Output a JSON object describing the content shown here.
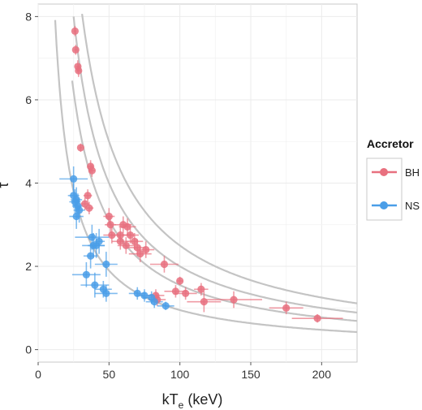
{
  "chart_data": {
    "type": "scatter",
    "xlabel": "kT",
    "xlabel_sub": "e",
    "xlabel_unit": "(keV)",
    "ylabel": "τ",
    "xlim": [
      0,
      225
    ],
    "ylim": [
      -0.3,
      8.3
    ],
    "x_ticks": [
      0,
      50,
      100,
      150,
      200
    ],
    "y_ticks": [
      0,
      2,
      4,
      6,
      8
    ],
    "grid": true,
    "legend": {
      "title": "Accretor",
      "position": "right",
      "entries": [
        {
          "label": "BH",
          "color": "#e8707f"
        },
        {
          "label": "NS",
          "color": "#4a9ee8"
        }
      ]
    },
    "curves": {
      "color": "#c4c4c4",
      "note_values_k": [
        200,
        250,
        155,
        95
      ],
      "x_start": [
        24,
        16,
        24,
        10
      ]
    },
    "series": [
      {
        "name": "BH",
        "color": "#e8707f",
        "points": [
          {
            "x": 26,
            "y": 7.65,
            "ex": 1,
            "ey": 0.12
          },
          {
            "x": 26.5,
            "y": 7.2,
            "ex": 1,
            "ey": 0.12
          },
          {
            "x": 28,
            "y": 6.8,
            "ex": 1.5,
            "ey": 0.15
          },
          {
            "x": 28.5,
            "y": 6.7,
            "ex": 1.5,
            "ey": 0.15
          },
          {
            "x": 30,
            "y": 4.85,
            "ex": 1,
            "ey": 0.1
          },
          {
            "x": 37,
            "y": 4.4,
            "ex": 2,
            "ey": 0.15
          },
          {
            "x": 38,
            "y": 4.3,
            "ex": 2,
            "ey": 0.15
          },
          {
            "x": 35,
            "y": 3.7,
            "ex": 3,
            "ey": 0.15
          },
          {
            "x": 33,
            "y": 3.5,
            "ex": 3,
            "ey": 0.15
          },
          {
            "x": 36,
            "y": 3.4,
            "ex": 3,
            "ey": 0.15
          },
          {
            "x": 50,
            "y": 3.2,
            "ex": 4,
            "ey": 0.2
          },
          {
            "x": 51,
            "y": 3.0,
            "ex": 4,
            "ey": 0.2
          },
          {
            "x": 52,
            "y": 2.75,
            "ex": 6,
            "ey": 0.2
          },
          {
            "x": 58,
            "y": 2.75,
            "ex": 8,
            "ey": 0.2
          },
          {
            "x": 60,
            "y": 3.0,
            "ex": 6,
            "ey": 0.2
          },
          {
            "x": 63,
            "y": 2.95,
            "ex": 6,
            "ey": 0.2
          },
          {
            "x": 65,
            "y": 2.75,
            "ex": 6,
            "ey": 0.2
          },
          {
            "x": 58,
            "y": 2.6,
            "ex": 6,
            "ey": 0.2
          },
          {
            "x": 62,
            "y": 2.5,
            "ex": 6,
            "ey": 0.2
          },
          {
            "x": 68,
            "y": 2.6,
            "ex": 6,
            "ey": 0.2
          },
          {
            "x": 70,
            "y": 2.45,
            "ex": 6,
            "ey": 0.2
          },
          {
            "x": 72,
            "y": 2.3,
            "ex": 8,
            "ey": 0.2
          },
          {
            "x": 76,
            "y": 2.4,
            "ex": 6,
            "ey": 0.2
          },
          {
            "x": 89,
            "y": 2.05,
            "ex": 10,
            "ey": 0.2
          },
          {
            "x": 100,
            "y": 1.65,
            "ex": 2,
            "ey": 0.1
          },
          {
            "x": 83,
            "y": 1.3,
            "ex": 6,
            "ey": 0.15
          },
          {
            "x": 84,
            "y": 1.2,
            "ex": 6,
            "ey": 0.15
          },
          {
            "x": 97,
            "y": 1.4,
            "ex": 8,
            "ey": 0.15
          },
          {
            "x": 104,
            "y": 1.35,
            "ex": 8,
            "ey": 0.15
          },
          {
            "x": 115,
            "y": 1.45,
            "ex": 5,
            "ey": 0.15
          },
          {
            "x": 117,
            "y": 1.15,
            "ex": 12,
            "ey": 0.25
          },
          {
            "x": 138,
            "y": 1.2,
            "ex": 20,
            "ey": 0.2
          },
          {
            "x": 175,
            "y": 1.0,
            "ex": 12,
            "ey": 0.15
          },
          {
            "x": 197,
            "y": 0.75,
            "ex": 18,
            "ey": 0.1
          }
        ]
      },
      {
        "name": "NS",
        "color": "#4a9ee8",
        "points": [
          {
            "x": 25,
            "y": 4.1,
            "ex": 10,
            "ey": 0.3
          },
          {
            "x": 25,
            "y": 3.7,
            "ex": 4,
            "ey": 0.3
          },
          {
            "x": 26,
            "y": 3.55,
            "ex": 4,
            "ey": 0.3
          },
          {
            "x": 27,
            "y": 3.6,
            "ex": 4,
            "ey": 0.3
          },
          {
            "x": 28,
            "y": 3.45,
            "ex": 4,
            "ey": 0.3
          },
          {
            "x": 29,
            "y": 3.35,
            "ex": 4,
            "ey": 0.3
          },
          {
            "x": 27,
            "y": 3.2,
            "ex": 5,
            "ey": 0.3
          },
          {
            "x": 38,
            "y": 2.7,
            "ex": 12,
            "ey": 0.3
          },
          {
            "x": 43,
            "y": 2.6,
            "ex": 4,
            "ey": 0.3
          },
          {
            "x": 39,
            "y": 2.5,
            "ex": 8,
            "ey": 0.3
          },
          {
            "x": 41,
            "y": 2.5,
            "ex": 6,
            "ey": 0.3
          },
          {
            "x": 37,
            "y": 2.25,
            "ex": 5,
            "ey": 0.3
          },
          {
            "x": 48,
            "y": 2.05,
            "ex": 8,
            "ey": 0.3
          },
          {
            "x": 34,
            "y": 1.8,
            "ex": 10,
            "ey": 0.3
          },
          {
            "x": 40,
            "y": 1.55,
            "ex": 10,
            "ey": 0.3
          },
          {
            "x": 46,
            "y": 1.45,
            "ex": 6,
            "ey": 0.2
          },
          {
            "x": 48,
            "y": 1.35,
            "ex": 8,
            "ey": 0.2
          },
          {
            "x": 70,
            "y": 1.35,
            "ex": 6,
            "ey": 0.15
          },
          {
            "x": 75,
            "y": 1.3,
            "ex": 6,
            "ey": 0.15
          },
          {
            "x": 80,
            "y": 1.25,
            "ex": 6,
            "ey": 0.15
          },
          {
            "x": 82,
            "y": 1.15,
            "ex": 6,
            "ey": 0.15
          },
          {
            "x": 90,
            "y": 1.05,
            "ex": 6,
            "ey": 0.1
          }
        ]
      }
    ]
  }
}
